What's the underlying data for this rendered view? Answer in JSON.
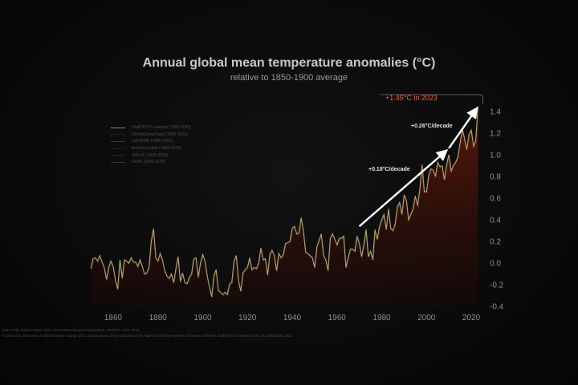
{
  "chart_data": {
    "type": "line",
    "title": "Annual global mean temperature anomalies (°C)",
    "subtitle": "relative to 1850-1900 average",
    "xlabel": "",
    "ylabel": "",
    "xlim": [
      1850,
      2023
    ],
    "ylim": [
      -0.4,
      1.4
    ],
    "x_ticks": [
      1860,
      1880,
      1900,
      1920,
      1940,
      1960,
      1980,
      2000,
      2020
    ],
    "y_ticks": [
      -0.4,
      -0.2,
      0.0,
      0.2,
      0.4,
      0.6,
      0.8,
      1.0,
      1.2,
      1.4
    ],
    "y_axis_side": "right",
    "grid": false,
    "legend_position": "top-left",
    "legend": [
      "HadCRUT5 analysis (1850-2023)",
      "NOAAGlobalTemp (1850-2023)",
      "GISTEMP (1880-2023)",
      "Berkeley Earth (1850-2023)",
      "JRA-55 (1958-2023)",
      "ERA5 (1940-2023)"
    ],
    "series": [
      {
        "name": "HadCRUT5 analysis (1850-2023)",
        "start_year": 1850,
        "values": [
          -0.05,
          0.04,
          0.05,
          0.02,
          0.07,
          0.01,
          -0.04,
          -0.15,
          -0.04,
          0.02,
          -0.03,
          -0.16,
          -0.24,
          0.03,
          -0.14,
          0.03,
          0.02,
          0.0,
          0.05,
          0.01,
          0.01,
          -0.03,
          0.03,
          -0.03,
          -0.1,
          -0.09,
          -0.04,
          0.2,
          0.32,
          0.05,
          0.02,
          0.09,
          0.03,
          -0.07,
          -0.12,
          -0.14,
          -0.1,
          -0.18,
          -0.05,
          0.06,
          -0.17,
          -0.09,
          -0.18,
          -0.19,
          -0.13,
          -0.1,
          0.04,
          0.05,
          -0.13,
          0.0,
          0.08,
          0.02,
          -0.12,
          -0.22,
          -0.31,
          -0.12,
          -0.06,
          -0.25,
          -0.27,
          -0.29,
          -0.27,
          -0.29,
          -0.19,
          -0.18,
          0.02,
          0.07,
          -0.16,
          -0.26,
          -0.09,
          -0.06,
          -0.04,
          0.05,
          -0.06,
          -0.04,
          -0.05,
          0.0,
          0.14,
          0.03,
          0.04,
          -0.11,
          0.08,
          0.12,
          0.07,
          -0.07,
          0.09,
          0.05,
          0.08,
          0.18,
          0.19,
          0.2,
          0.32,
          0.34,
          0.27,
          0.28,
          0.42,
          0.3,
          0.1,
          0.09,
          0.07,
          0.05,
          -0.04,
          0.15,
          0.21,
          0.27,
          0.07,
          0.03,
          -0.07,
          0.23,
          0.27,
          0.22,
          0.17,
          0.23,
          0.23,
          0.25,
          -0.04,
          0.05,
          0.13,
          0.13,
          0.11,
          0.25,
          0.18,
          0.06,
          0.17,
          0.31,
          0.06,
          0.11,
          0.03,
          0.31,
          0.22,
          0.34,
          0.4,
          0.45,
          0.31,
          0.5,
          0.32,
          0.3,
          0.36,
          0.52,
          0.56,
          0.45,
          0.63,
          0.58,
          0.4,
          0.45,
          0.5,
          0.62,
          0.53,
          0.68,
          0.91,
          0.66,
          0.66,
          0.81,
          0.87,
          0.86,
          0.8,
          0.93,
          0.89,
          0.9,
          0.77,
          0.91,
          1.0,
          0.85,
          0.9,
          0.93,
          0.98,
          1.11,
          1.24,
          1.15,
          1.05,
          1.19,
          1.23,
          1.08,
          1.13,
          1.45
        ]
      }
    ],
    "annotations": [
      {
        "text": "+1.45°C in 2023",
        "x": 2023,
        "y": 1.45
      },
      {
        "text": "+0.18°C/decade",
        "x_from": 1970,
        "x_to": 2009
      },
      {
        "text": "+0.26°C/decade",
        "x_from": 2009,
        "x_to": 2023
      }
    ]
  },
  "colors": {
    "line": "#b8b77a",
    "fill": "#5a1408",
    "highlight": "#e0623f",
    "arrow": "#ffffff",
    "background": "#0b0b0b"
  },
  "footer": [
    "State of the Global Climate 2023. World Meteorological Organization, WMO-No. 1347, 2024",
    "Forster et al.: Indicators of Global Climate Change 2023: annual update of key indicators of the state of the climate system and human influence. Earth System Science Data, 16, 2625-2658, 2024"
  ]
}
